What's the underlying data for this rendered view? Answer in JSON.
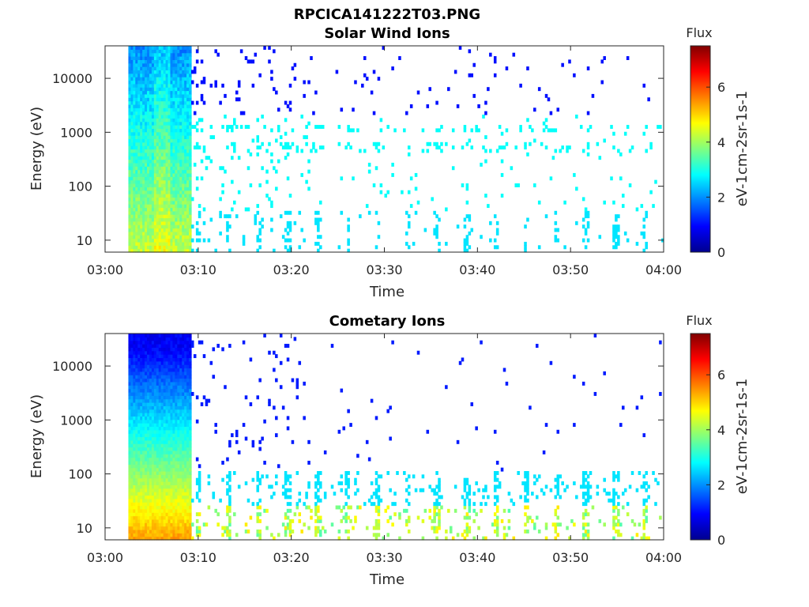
{
  "figure": {
    "title": "RPCICA141222T03.PNG"
  },
  "chart_data": [
    {
      "type": "heatmap",
      "title": "Solar Wind Ions",
      "xlabel": "Time",
      "ylabel": "Energy (eV)",
      "x_ticks": [
        "03:00",
        "03:10",
        "03:20",
        "03:30",
        "03:40",
        "03:50",
        "04:00"
      ],
      "y_ticks": [
        "10",
        "100",
        "1000",
        "10000"
      ],
      "y_scale": "log",
      "ylim": [
        6,
        40000
      ],
      "xlim_minutes": [
        0,
        60
      ],
      "colorbar": {
        "label": "Flux",
        "unit_label": "eV-1cm-2sr-1s-1",
        "ticks": [
          "0",
          "2",
          "4",
          "6"
        ],
        "range": [
          0,
          7.5
        ]
      }
    },
    {
      "type": "heatmap",
      "title": "Cometary Ions",
      "xlabel": "Time",
      "ylabel": "Energy (eV)",
      "x_ticks": [
        "03:00",
        "03:10",
        "03:20",
        "03:30",
        "03:40",
        "03:50",
        "04:00"
      ],
      "y_ticks": [
        "10",
        "100",
        "1000",
        "10000"
      ],
      "y_scale": "log",
      "ylim": [
        6,
        40000
      ],
      "xlim_minutes": [
        0,
        60
      ],
      "colorbar": {
        "label": "Flux",
        "unit_label": "eV-1cm-2sr-1s-1",
        "ticks": [
          "0",
          "2",
          "4",
          "6"
        ],
        "range": [
          0,
          7.5
        ]
      }
    }
  ]
}
